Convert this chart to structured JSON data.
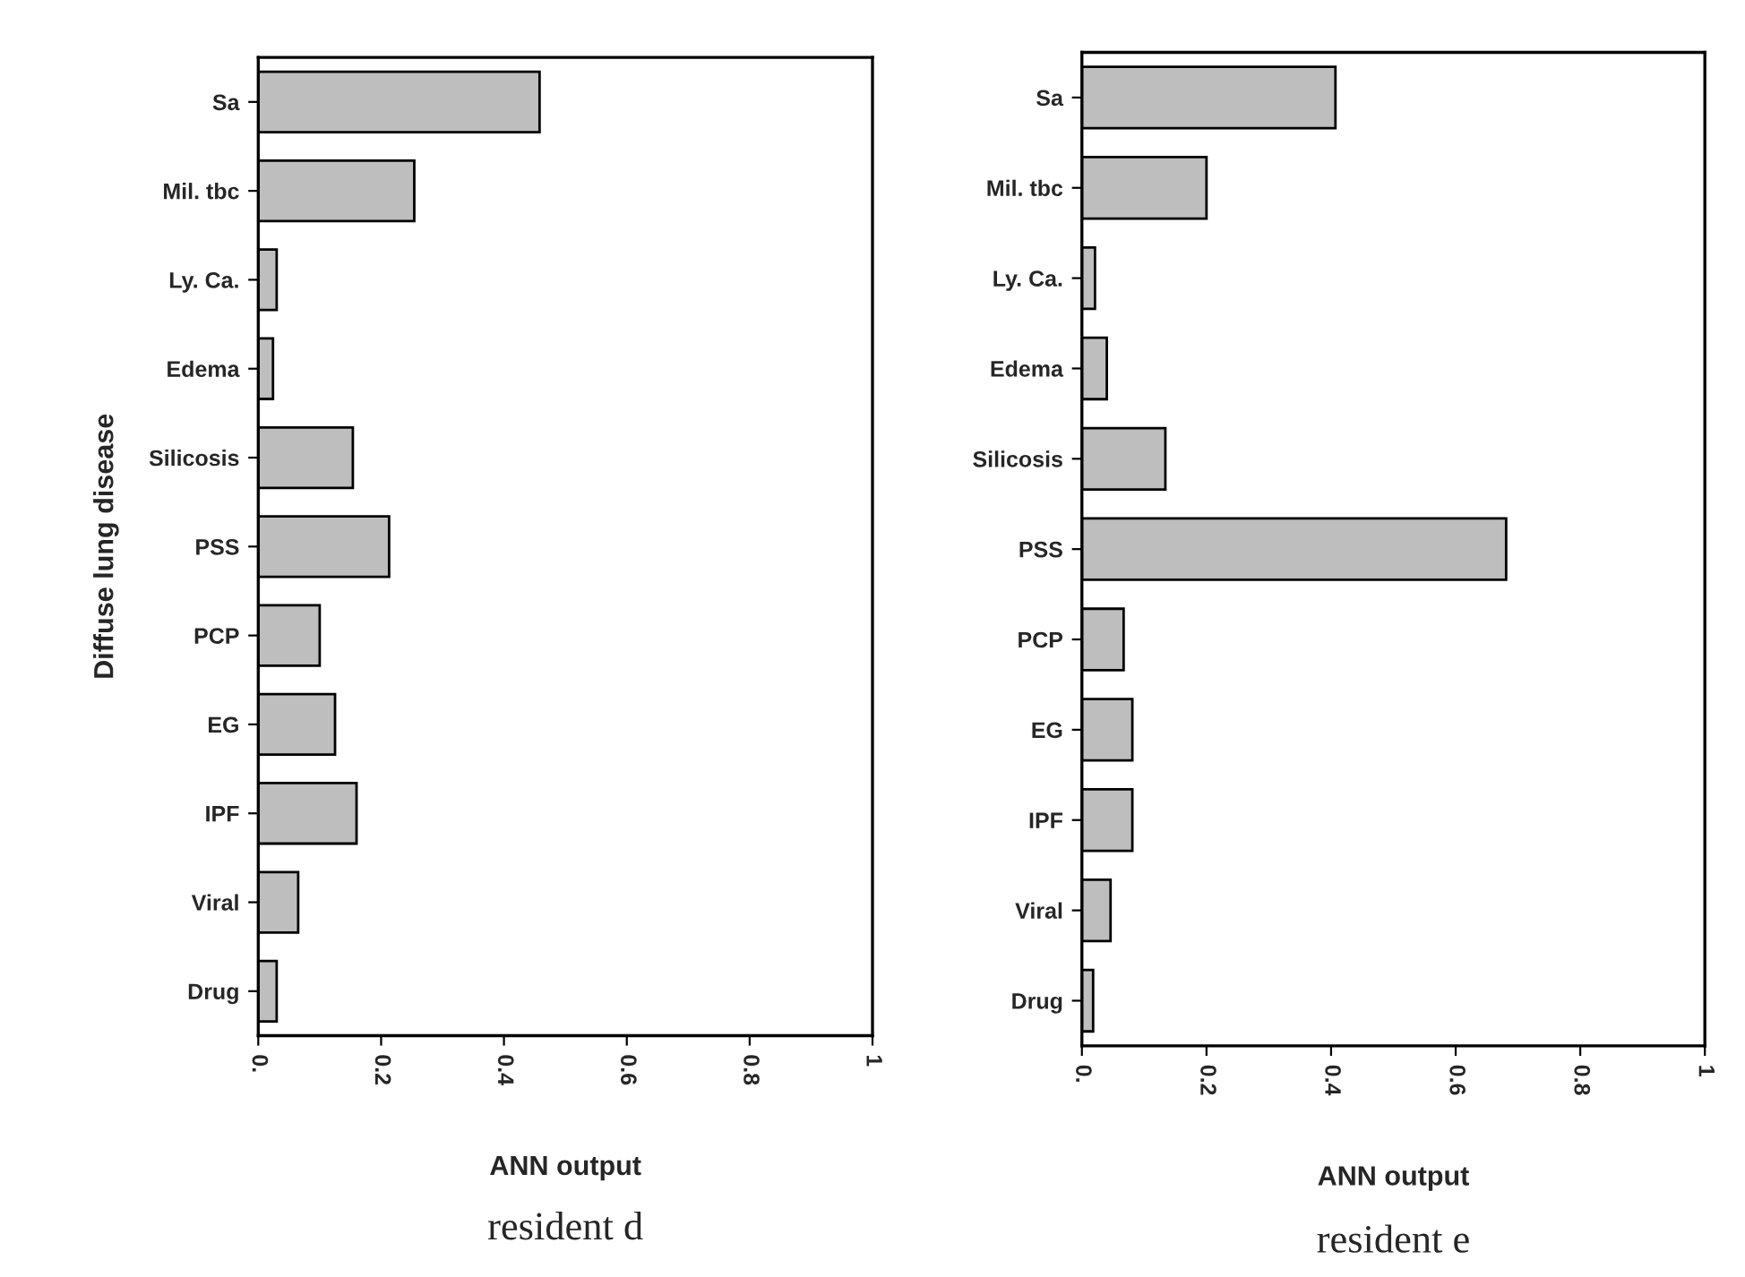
{
  "chart_data": [
    {
      "type": "bar",
      "orientation": "horizontal",
      "xlabel": "ANN output",
      "ylabel": "Diffuse lung disease",
      "categories": [
        "Sa",
        "Mil. tbc",
        "Ly. Ca.",
        "Edema",
        "Silicosis",
        "PSS",
        "PCP",
        "EG",
        "IPF",
        "Viral",
        "Drug"
      ],
      "values": [
        0.458,
        0.254,
        0.03,
        0.024,
        0.154,
        0.213,
        0.1,
        0.125,
        0.16,
        0.065,
        0.03
      ],
      "color": "#bebebe",
      "xlim": [
        0,
        1
      ],
      "xticks": [
        {
          "value": 0,
          "label": "0."
        },
        0.2,
        0.4,
        0.6,
        0.8,
        1
      ],
      "annotations": [
        "resident d"
      ]
    },
    {
      "type": "bar",
      "orientation": "horizontal",
      "xlabel": "ANN output",
      "categories": [
        "Sa",
        "Mil. tbc",
        "Ly. Ca.",
        "Edema",
        "Silicosis",
        "PSS",
        "PCP",
        "EG",
        "IPF",
        "Viral",
        "Drug"
      ],
      "values": [
        0.407,
        0.2,
        0.021,
        0.04,
        0.134,
        0.681,
        0.067,
        0.081,
        0.081,
        0.046,
        0.018
      ],
      "color": "#bebebe",
      "xlim": [
        0,
        1
      ],
      "xticks": [
        {
          "value": 0,
          "label": "0."
        },
        0.2,
        0.4,
        0.6,
        0.8,
        1
      ],
      "annotations": [
        "resident e"
      ]
    }
  ]
}
